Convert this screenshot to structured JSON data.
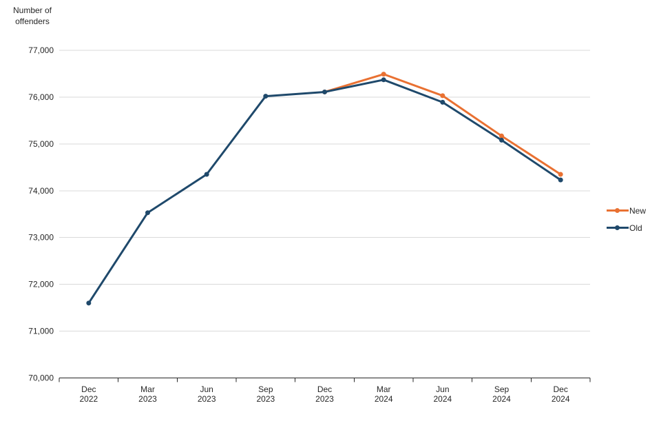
{
  "chart_data": {
    "type": "line",
    "title": "",
    "ylabel": "Number of offenders",
    "ylabel_lines": [
      "Number of",
      "offenders"
    ],
    "categories": [
      {
        "line1": "Dec",
        "line2": "2022"
      },
      {
        "line1": "Mar",
        "line2": "2023"
      },
      {
        "line1": "Jun",
        "line2": "2023"
      },
      {
        "line1": "Sep",
        "line2": "2023"
      },
      {
        "line1": "Dec",
        "line2": "2023"
      },
      {
        "line1": "Mar",
        "line2": "2024"
      },
      {
        "line1": "Jun",
        "line2": "2024"
      },
      {
        "line1": "Sep",
        "line2": "2024"
      },
      {
        "line1": "Dec",
        "line2": "2024"
      }
    ],
    "series": [
      {
        "name": "New",
        "color": "#E97132",
        "values": [
          null,
          null,
          null,
          null,
          76110,
          76490,
          76030,
          75170,
          74350
        ]
      },
      {
        "name": "Old",
        "color": "#1F496B",
        "values": [
          71600,
          73530,
          74350,
          76020,
          76110,
          76370,
          75890,
          75080,
          74230
        ]
      }
    ],
    "ylim": [
      70000,
      77000
    ],
    "ytick_step": 1000,
    "grid": true,
    "legend_position": "right",
    "legend": [
      "New",
      "Old"
    ]
  },
  "style": {
    "grid_color": "#D9D9D9",
    "axis_color": "#262626",
    "text_color": "#262626",
    "background": "#FFFFFF"
  }
}
